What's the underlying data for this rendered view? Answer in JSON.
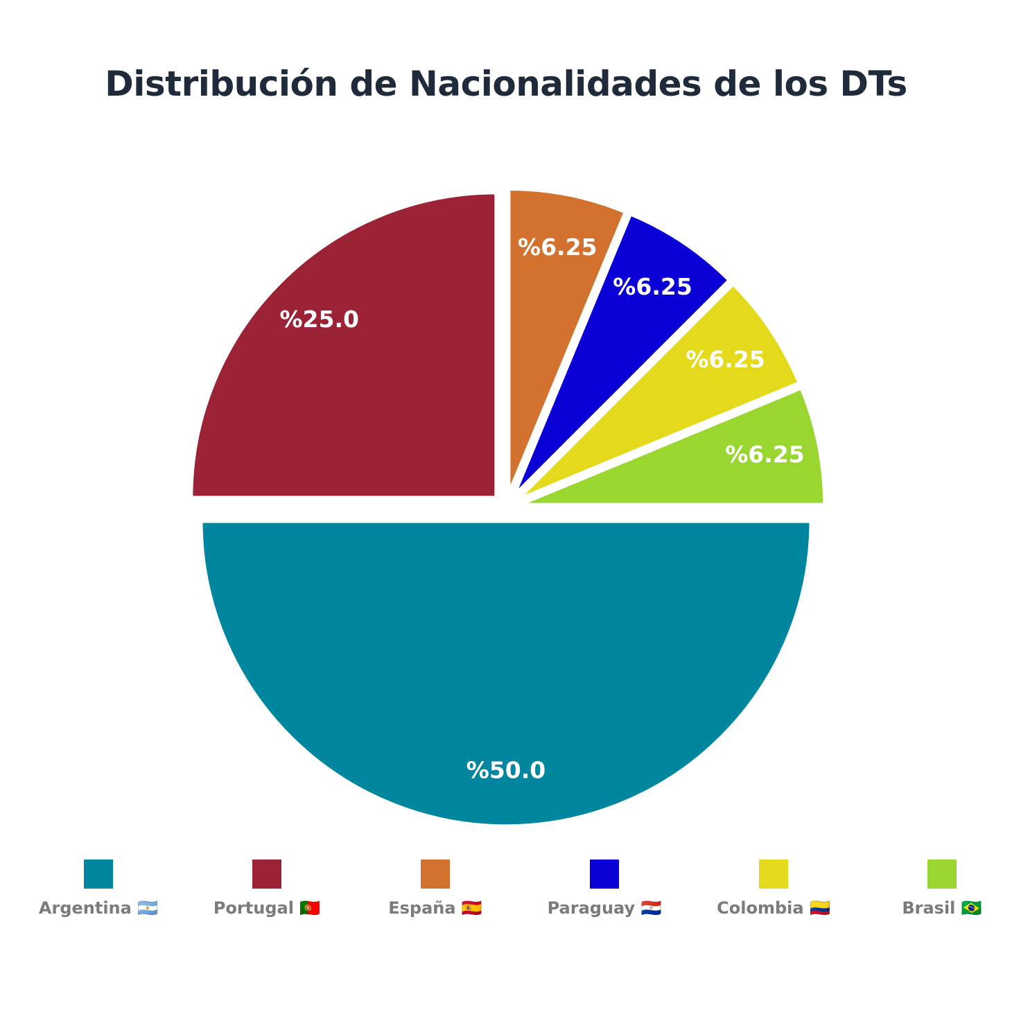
{
  "chart_data": {
    "type": "pie",
    "title": "Distribución de Nacionalidades de los DTs",
    "slices": [
      {
        "name": "Argentina 🇦🇷",
        "value": 50.0,
        "label": "%50.0",
        "color": "#00869f"
      },
      {
        "name": "Portugal 🇵🇹",
        "value": 25.0,
        "label": "%25.0",
        "color": "#9b2335"
      },
      {
        "name": "España 🇪🇸",
        "value": 6.25,
        "label": "%6.25",
        "color": "#d3722f"
      },
      {
        "name": "Paraguay 🇵🇾",
        "value": 6.25,
        "label": "%6.25",
        "color": "#0a00d6"
      },
      {
        "name": "Colombia 🇨🇴",
        "value": 6.25,
        "label": "%6.25",
        "color": "#e5d91b"
      },
      {
        "name": "Brasil 🇧🇷",
        "value": 6.25,
        "label": "%6.25",
        "color": "#9ad630"
      }
    ],
    "legend_position": "bottom"
  }
}
